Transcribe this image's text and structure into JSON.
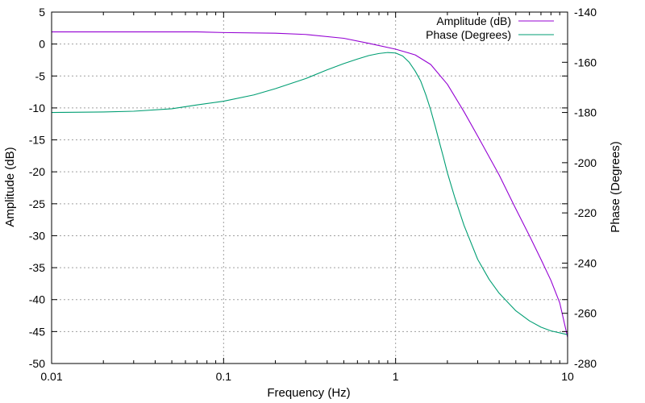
{
  "chart_data": {
    "type": "line",
    "title": "",
    "xlabel": "Frequency (Hz)",
    "ylabel": "Amplitude (dB)",
    "y2label": "Phase (Degrees)",
    "xscale": "log",
    "xlim": [
      0.01,
      10
    ],
    "ylim": [
      -50,
      5
    ],
    "y2lim": [
      -280,
      -140
    ],
    "grid": true,
    "legend_position": "top-right",
    "x_ticks": [
      0.01,
      0.1,
      1,
      10
    ],
    "x_tick_labels": [
      "0.01",
      "0.1",
      "1",
      "10"
    ],
    "y_ticks": [
      5,
      0,
      -5,
      -10,
      -15,
      -20,
      -25,
      -30,
      -35,
      -40,
      -45,
      -50
    ],
    "y_tick_labels": [
      "5",
      "0",
      "-5",
      "-10",
      "-15",
      "-20",
      "-25",
      "-30",
      "-35",
      "-40",
      "-45",
      "-50"
    ],
    "y2_ticks": [
      -140,
      -160,
      -180,
      -200,
      -220,
      -240,
      -260,
      -280
    ],
    "y2_tick_labels": [
      "-140",
      "-160",
      "-180",
      "-200",
      "-220",
      "-240",
      "-260",
      "-280"
    ],
    "series": [
      {
        "name": "Amplitude (dB)",
        "axis": "left",
        "color": "#9400d3",
        "x": [
          0.01,
          0.02,
          0.05,
          0.07,
          0.1,
          0.2,
          0.3,
          0.5,
          0.7,
          1,
          1.3,
          1.6,
          2,
          2.5,
          3,
          4,
          5,
          6,
          7,
          8,
          9,
          10
        ],
        "y": [
          1.9,
          1.9,
          1.9,
          1.9,
          1.8,
          1.7,
          1.5,
          0.9,
          0.1,
          -0.8,
          -1.7,
          -3.2,
          -6.3,
          -10.6,
          -14.4,
          -20.5,
          -25.8,
          -30,
          -33.7,
          -37,
          -40.5,
          -45.9
        ]
      },
      {
        "name": "Phase (Degrees)",
        "axis": "right",
        "color": "#009e73",
        "x": [
          0.01,
          0.02,
          0.03,
          0.05,
          0.07,
          0.1,
          0.15,
          0.2,
          0.3,
          0.4,
          0.5,
          0.6,
          0.7,
          0.8,
          0.9,
          1.0,
          1.1,
          1.2,
          1.3,
          1.4,
          1.5,
          1.6,
          1.7,
          1.8,
          1.9,
          2.0,
          2.2,
          2.5,
          3.0,
          3.5,
          4.0,
          5.0,
          6.0,
          7.0,
          8.0,
          10.0
        ],
        "y": [
          -180,
          -179.8,
          -179.5,
          -178.5,
          -177,
          -175.5,
          -173,
          -170.5,
          -166.5,
          -163,
          -160.5,
          -158.7,
          -157.3,
          -156.5,
          -156.1,
          -156.3,
          -157.5,
          -160,
          -163.5,
          -167.5,
          -173,
          -179,
          -185.5,
          -192,
          -198,
          -204,
          -213.5,
          -225,
          -238.5,
          -246.5,
          -252,
          -259,
          -263,
          -265.5,
          -267,
          -268.5
        ]
      }
    ]
  }
}
